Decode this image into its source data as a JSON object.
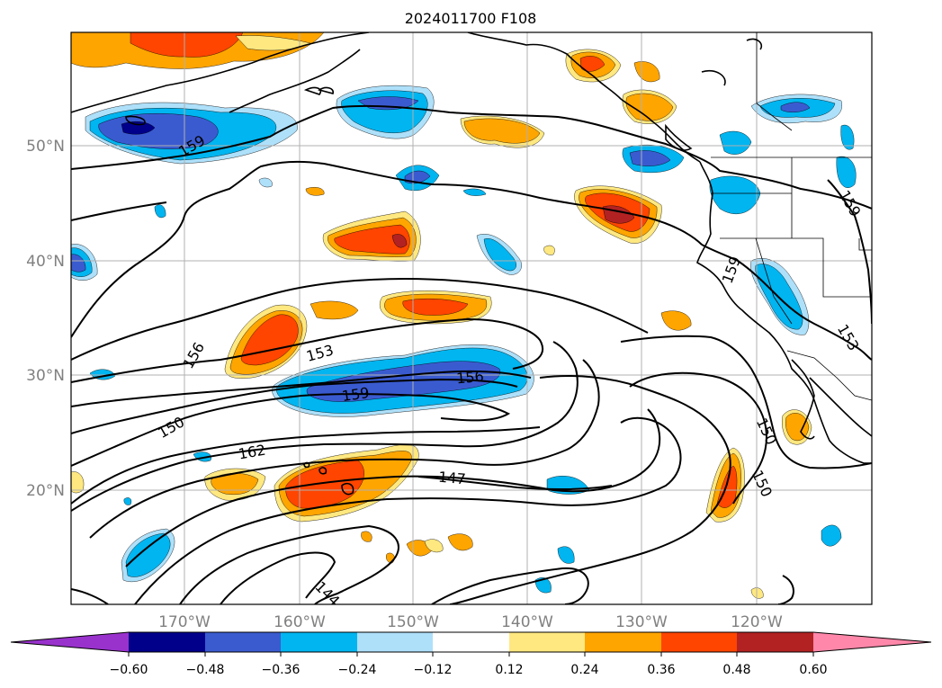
{
  "title": "2024011700 F108",
  "lat_labels": [
    "50°N",
    "40°N",
    "30°N",
    "20°N"
  ],
  "lon_labels": [
    "170°W",
    "160°W",
    "150°W",
    "140°W",
    "130°W",
    "120°W"
  ],
  "colorbar": {
    "ticks": [
      "−0.60",
      "−0.48",
      "−0.36",
      "−0.24",
      "−0.12",
      "0.12",
      "0.24",
      "0.36",
      "0.48",
      "0.60"
    ],
    "colors": [
      "#9932cc",
      "#00008b",
      "#3a5bd0",
      "#00b5f0",
      "#aee0fa",
      "#ffffff",
      "#ffe880",
      "#ffa500",
      "#ff4500",
      "#b22222",
      "#ff88aa"
    ]
  },
  "contour_labels": [
    "159",
    "156",
    "153",
    "150",
    "162",
    "147",
    "144",
    "156",
    "159",
    "159",
    "159",
    "153",
    "150"
  ],
  "colors": {
    "deep_neg": "#00008b",
    "strong_neg": "#3a5bd0",
    "mid_neg": "#00b5f0",
    "weak_neg": "#aee0fa",
    "weak_pos": "#ffe880",
    "mid_pos": "#ffa500",
    "strong_pos": "#ff4500",
    "deep_pos": "#b22222"
  }
}
